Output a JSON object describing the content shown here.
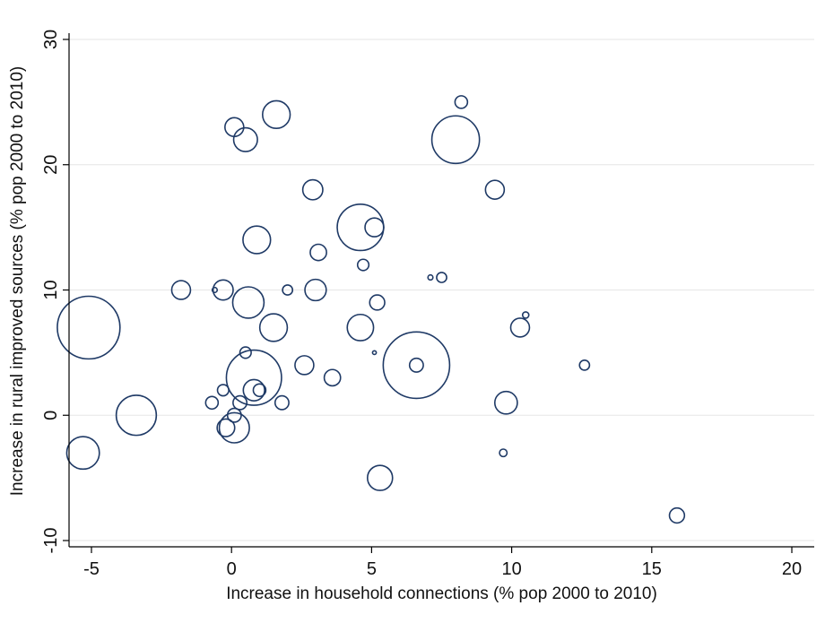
{
  "chart_data": {
    "type": "scatter",
    "title": "",
    "xlabel": "Increase in household connections (% pop 2000 to 2010)",
    "ylabel": "Increase in rural improved sources (% pop 2000 to 2010)",
    "xlim": [
      -5.8,
      20.8
    ],
    "ylim": [
      -10.5,
      30.5
    ],
    "xticks": [
      -5,
      0,
      5,
      10,
      15,
      20
    ],
    "yticks": [
      -10,
      0,
      10,
      20,
      30
    ],
    "grid": "horizontal",
    "marker": "hollow circle, size proportional to weight",
    "color": "#1f3a66",
    "points": [
      {
        "x": -5.1,
        "y": 7,
        "size": 50
      },
      {
        "x": -5.3,
        "y": -3,
        "size": 26
      },
      {
        "x": -3.4,
        "y": 0,
        "size": 32
      },
      {
        "x": -1.8,
        "y": 10,
        "size": 15
      },
      {
        "x": -0.6,
        "y": 10,
        "size": 4
      },
      {
        "x": -0.3,
        "y": 10,
        "size": 16
      },
      {
        "x": -0.7,
        "y": 1,
        "size": 10
      },
      {
        "x": -0.3,
        "y": 2,
        "size": 9
      },
      {
        "x": 0.1,
        "y": 23,
        "size": 15
      },
      {
        "x": 0.5,
        "y": 22,
        "size": 19
      },
      {
        "x": 1.6,
        "y": 24,
        "size": 22
      },
      {
        "x": 0.9,
        "y": 14,
        "size": 22
      },
      {
        "x": 0.6,
        "y": 9,
        "size": 25
      },
      {
        "x": 1.5,
        "y": 7,
        "size": 22
      },
      {
        "x": 0.5,
        "y": 5,
        "size": 9
      },
      {
        "x": 0.8,
        "y": 3,
        "size": 44
      },
      {
        "x": 0.8,
        "y": 2,
        "size": 17
      },
      {
        "x": 1.0,
        "y": 2,
        "size": 10
      },
      {
        "x": 0.3,
        "y": 1,
        "size": 11
      },
      {
        "x": 0.1,
        "y": 0,
        "size": 11
      },
      {
        "x": -0.2,
        "y": -1,
        "size": 14
      },
      {
        "x": 0.1,
        "y": -1,
        "size": 24
      },
      {
        "x": 1.8,
        "y": 1,
        "size": 11
      },
      {
        "x": 2.0,
        "y": 10,
        "size": 8
      },
      {
        "x": 2.6,
        "y": 4,
        "size": 15
      },
      {
        "x": 2.9,
        "y": 18,
        "size": 16
      },
      {
        "x": 3.0,
        "y": 10,
        "size": 17
      },
      {
        "x": 3.1,
        "y": 13,
        "size": 13
      },
      {
        "x": 3.6,
        "y": 3,
        "size": 13
      },
      {
        "x": 4.6,
        "y": 15,
        "size": 37
      },
      {
        "x": 4.6,
        "y": 7,
        "size": 21
      },
      {
        "x": 4.7,
        "y": 12,
        "size": 9
      },
      {
        "x": 5.1,
        "y": 15,
        "size": 15
      },
      {
        "x": 5.1,
        "y": 5,
        "size": 3
      },
      {
        "x": 5.2,
        "y": 9,
        "size": 12
      },
      {
        "x": 5.3,
        "y": -5,
        "size": 20
      },
      {
        "x": 6.6,
        "y": 4,
        "size": 53
      },
      {
        "x": 6.6,
        "y": 4,
        "size": 11
      },
      {
        "x": 7.1,
        "y": 11,
        "size": 4
      },
      {
        "x": 7.5,
        "y": 11,
        "size": 8
      },
      {
        "x": 8.0,
        "y": 22,
        "size": 38
      },
      {
        "x": 8.2,
        "y": 25,
        "size": 10
      },
      {
        "x": 9.4,
        "y": 18,
        "size": 15
      },
      {
        "x": 9.7,
        "y": -3,
        "size": 6
      },
      {
        "x": 9.8,
        "y": 1,
        "size": 18
      },
      {
        "x": 10.3,
        "y": 7,
        "size": 15
      },
      {
        "x": 10.5,
        "y": 8,
        "size": 5
      },
      {
        "x": 12.6,
        "y": 4,
        "size": 8
      },
      {
        "x": 15.9,
        "y": -8,
        "size": 12
      }
    ]
  }
}
